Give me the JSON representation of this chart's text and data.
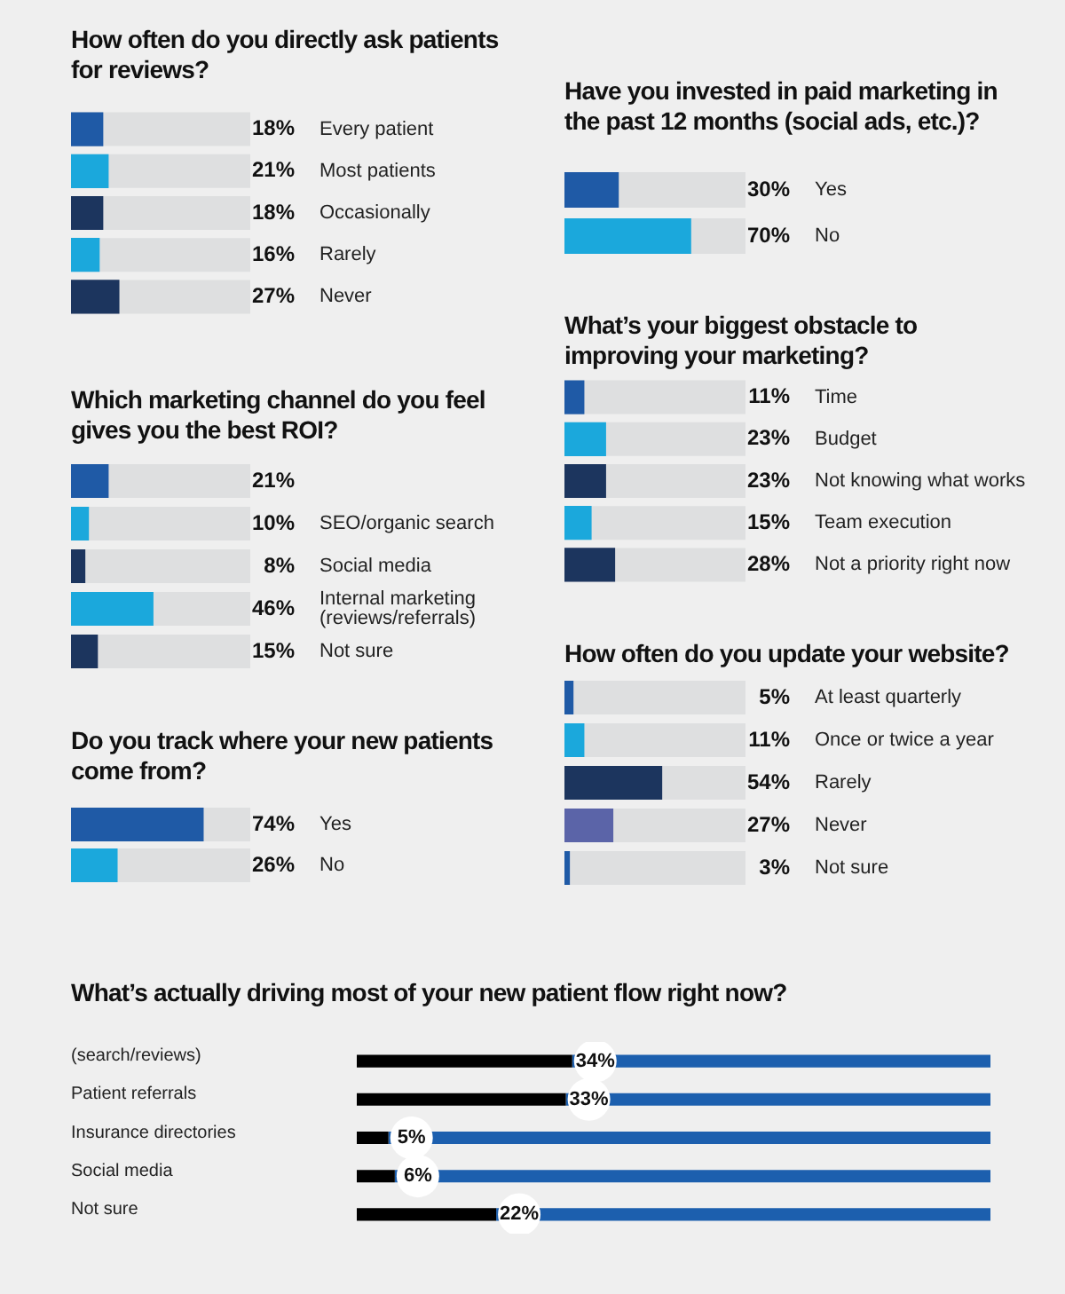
{
  "chart_data": [
    {
      "type": "bar",
      "orientation": "horizontal",
      "title": "How often do you directly ask patients for reviews?",
      "categories": [
        "Every patient",
        "Most patients",
        "Occasionally",
        "Rarely",
        "Never"
      ],
      "values": [
        18,
        21,
        18,
        16,
        27
      ],
      "colors": [
        "#1f5aa6",
        "#1ba8dc",
        "#1c355e",
        "#1ba8dc",
        "#1c355e"
      ],
      "value_labels": [
        "18%",
        "21%",
        "18%",
        "16%",
        "27%"
      ],
      "xlim": [
        0,
        100
      ],
      "tick_labels": false
    },
    {
      "type": "bar",
      "orientation": "horizontal",
      "title": "Have you invested in paid marketing in the past 12 months (social ads, etc.)?",
      "categories": [
        "Yes",
        "No"
      ],
      "values": [
        30,
        70
      ],
      "colors": [
        "#1f5aa6",
        "#1ba8dc"
      ],
      "value_labels": [
        "30%",
        "70%"
      ],
      "xlim": [
        0,
        100
      ],
      "tick_labels": false
    },
    {
      "type": "bar",
      "orientation": "horizontal",
      "title": "What’s your biggest obstacle to improving your marketing?",
      "categories": [
        "Time",
        "Budget",
        "Not knowing what works",
        "Team execution",
        "Not a priority right now"
      ],
      "values": [
        11,
        23,
        23,
        15,
        28
      ],
      "colors": [
        "#1f5aa6",
        "#1ba8dc",
        "#1c355e",
        "#1ba8dc",
        "#1c355e"
      ],
      "value_labels": [
        "11%",
        "23%",
        "23%",
        "15%",
        "28%"
      ],
      "xlim": [
        0,
        100
      ],
      "tick_labels": false
    },
    {
      "type": "bar",
      "orientation": "horizontal",
      "title": "Which marketing channel do you feel gives you the best ROI?",
      "categories": [
        null,
        "SEO/organic search",
        "Social media",
        "Internal marketing (reviews/referrals)",
        "Not sure"
      ],
      "values": [
        21,
        10,
        8,
        46,
        15
      ],
      "colors": [
        "#1f5aa6",
        "#1ba8dc",
        "#1c355e",
        "#1ba8dc",
        "#1c355e"
      ],
      "value_labels": [
        "21%",
        "10%",
        "8%",
        "46%",
        "15%"
      ],
      "xlim": [
        0,
        100
      ],
      "tick_labels": false
    },
    {
      "type": "bar",
      "orientation": "horizontal",
      "title": "How often do you update your website?",
      "categories": [
        "At least quarterly",
        "Once or twice a year",
        "Rarely",
        "Never",
        "Not sure"
      ],
      "values": [
        5,
        11,
        54,
        27,
        3
      ],
      "colors": [
        "#1f5aa6",
        "#1ba8dc",
        "#1c355e",
        "#5b64a8",
        "#1f5aa6"
      ],
      "value_labels": [
        "5%",
        "11%",
        "54%",
        "27%",
        "3%"
      ],
      "xlim": [
        0,
        100
      ],
      "tick_labels": false
    },
    {
      "type": "bar",
      "orientation": "horizontal",
      "title": "Do you track where your new patients come from?",
      "categories": [
        "Yes",
        "No"
      ],
      "values": [
        74,
        26
      ],
      "colors": [
        "#1f5aa6",
        "#1ba8dc"
      ],
      "value_labels": [
        "74%",
        "26%"
      ],
      "xlim": [
        0,
        100
      ],
      "tick_labels": false
    },
    {
      "type": "bar",
      "orientation": "horizontal",
      "stacked": true,
      "title": "What’s actually driving most of your new patient flow right now?",
      "categories": [
        "(search/reviews)",
        "Patient referrals",
        "Insurance directories",
        "Social media",
        "Not sure"
      ],
      "series": [
        {
          "color": "#000000",
          "values": [
            34,
            33,
            5,
            6,
            22
          ],
          "value_labels": [
            "34%",
            "33%",
            "5%",
            "6%",
            "22%"
          ]
        },
        {
          "color": "#1c5fae",
          "values": [
            66,
            67,
            95,
            94,
            78
          ]
        }
      ],
      "tick_labels": false
    }
  ]
}
